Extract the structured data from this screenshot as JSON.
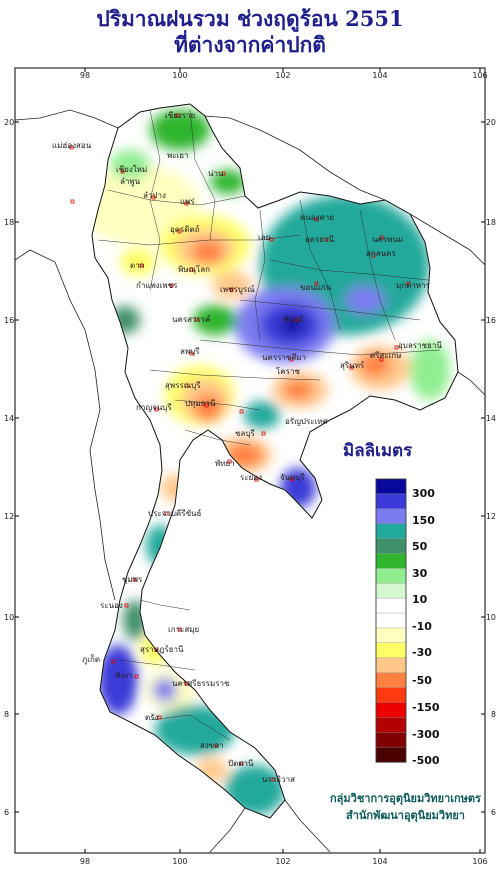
{
  "title": {
    "line1": "ปริมาณฝนรวม ช่วงฤดูร้อน 2551",
    "line2": "ที่ต่างจากค่าปกติ"
  },
  "axes": {
    "lon_ticks": [
      "98",
      "100",
      "102",
      "104",
      "106"
    ],
    "lat_ticks": [
      "20",
      "18",
      "16",
      "14",
      "12",
      "10",
      "8",
      "6"
    ]
  },
  "legend": {
    "title": "มิลลิเมตร",
    "labels": [
      "300",
      "150",
      "50",
      "30",
      "10",
      "-10",
      "-30",
      "-50",
      "-150",
      "-300",
      "-500"
    ],
    "colors": [
      "#08089c",
      "#3a3ad8",
      "#7b7bf0",
      "#21a99b",
      "#3f8f6a",
      "#2fb52f",
      "#90ee90",
      "#d4f7d0",
      "#ffffff",
      "#ffffff",
      "#ffffc0",
      "#ffff66",
      "#ffc88a",
      "#ff8040",
      "#ff3a10",
      "#ee0000",
      "#b40000",
      "#800000",
      "#4a0000"
    ]
  },
  "places": [
    {
      "name": "เชียงราย"
    },
    {
      "name": "แม่ฮ่องสอน"
    },
    {
      "name": "พะเยา"
    },
    {
      "name": "เชียงใหม่"
    },
    {
      "name": "ลำพูน"
    },
    {
      "name": "ลำปาง"
    },
    {
      "name": "น่าน"
    },
    {
      "name": "แพร่"
    },
    {
      "name": "อุตรดิตถ์"
    },
    {
      "name": "หนองคาย"
    },
    {
      "name": "อุดรธานี"
    },
    {
      "name": "นครพนม"
    },
    {
      "name": "สกลนคร"
    },
    {
      "name": "เลย"
    },
    {
      "name": "ตาก"
    },
    {
      "name": "พิษณุโลก"
    },
    {
      "name": "กำแพงเพชร"
    },
    {
      "name": "เพชรบูรณ์"
    },
    {
      "name": "ขอนแก่น"
    },
    {
      "name": "มุกดาหาร"
    },
    {
      "name": "นครสวรรค์"
    },
    {
      "name": "ชัยภูมิ"
    },
    {
      "name": "อุบลราชธานี"
    },
    {
      "name": "ลพบุรี"
    },
    {
      "name": "นครราชสีมา"
    },
    {
      "name": "สุรินทร์"
    },
    {
      "name": "ศรีสะเกษ"
    },
    {
      "name": "โคราช"
    },
    {
      "name": "สุพรรณบุรี"
    },
    {
      "name": "กาญจนบุรี"
    },
    {
      "name": "ปทุมธานี"
    },
    {
      "name": "ชลบุรี"
    },
    {
      "name": "อรัญประเทศ"
    },
    {
      "name": "พัทยา"
    },
    {
      "name": "ระยอง"
    },
    {
      "name": "จันทบุรี"
    },
    {
      "name": "ประจวบคีรีขันธ์"
    },
    {
      "name": "ชุมพร"
    },
    {
      "name": "ระนอง"
    },
    {
      "name": "เกาะสมุย"
    },
    {
      "name": "สุราษฎร์ธานี"
    },
    {
      "name": "ภูเก็ต"
    },
    {
      "name": "พังงา"
    },
    {
      "name": "นครศรีธรรมราช"
    },
    {
      "name": "ตรัง"
    },
    {
      "name": "สงขลา"
    },
    {
      "name": "ปัตตานี"
    },
    {
      "name": "นราธิวาส"
    }
  ],
  "credit": {
    "line1": "กลุ่มวิชาการอุตุนิยมวิทยาเกษตร",
    "line2": "สำนักพัฒนาอุตุนิยมวิทยา"
  }
}
